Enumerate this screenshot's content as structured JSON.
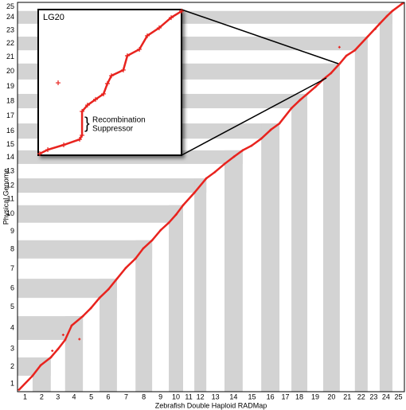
{
  "chart_data": [
    {
      "type": "scatter",
      "xlabel": "Zebrafish Double Haploid RADMap",
      "ylabel": "Physical Genome",
      "categories": [
        "1",
        "2",
        "3",
        "4",
        "5",
        "6",
        "7",
        "8",
        "9",
        "10",
        "11",
        "12",
        "13",
        "14",
        "15",
        "16",
        "17",
        "18",
        "19",
        "20",
        "21",
        "22",
        "23",
        "24",
        "25"
      ],
      "x_bounds": [
        0,
        3.9,
        8.6,
        12.3,
        16.9,
        21.2,
        25.7,
        30.5,
        34.8,
        39.1,
        42.8,
        45.7,
        48.8,
        53.5,
        58.2,
        63.0,
        67.7,
        70.8,
        74.9,
        79.0,
        83.3,
        87.2,
        90.5,
        93.6,
        96.9,
        100
      ],
      "y_bounds": [
        0,
        4.1,
        8.8,
        13.3,
        19.4,
        24.1,
        29.0,
        34.2,
        38.9,
        43.4,
        47.9,
        51.1,
        54.8,
        58.5,
        62.0,
        65.0,
        68.9,
        72.8,
        76.5,
        80.2,
        84.3,
        87.7,
        91.2,
        94.5,
        97.8,
        100
      ],
      "xlim": [
        0,
        100
      ],
      "ylim": [
        0,
        100
      ],
      "band_color": "#d3d3d3",
      "color": "#e8231e",
      "x": [
        0.4,
        3.9,
        6,
        8.6,
        10.5,
        12.3,
        14,
        16.9,
        19,
        21.2,
        23.5,
        25.7,
        28,
        30.5,
        32.5,
        34.8,
        37,
        39.1,
        41,
        42.8,
        45.7,
        48.8,
        51,
        53.5,
        56,
        58.2,
        60.5,
        63.0,
        65.5,
        67.7,
        70.8,
        73,
        74.9,
        77,
        79.0,
        81,
        83.3,
        85,
        87.2,
        90.5,
        93.6,
        95.5,
        96.9,
        99.6
      ],
      "y": [
        0.5,
        4.1,
        6.8,
        8.8,
        11,
        13.3,
        17,
        19.4,
        21.5,
        24.1,
        26.3,
        29.0,
        31.8,
        34.2,
        36.8,
        38.9,
        41.5,
        43.4,
        45.5,
        47.9,
        51.1,
        54.8,
        56.4,
        58.5,
        60.4,
        62.0,
        63.2,
        65.0,
        67.3,
        68.9,
        72.8,
        74.9,
        76.5,
        78.3,
        80.2,
        81.8,
        84.3,
        86.3,
        87.7,
        91.2,
        94.5,
        96.5,
        97.8,
        99.8
      ],
      "outliers_x": [
        16,
        11.8,
        83.2,
        92.5,
        9
      ],
      "outliers_y": [
        13.5,
        14.6,
        88.5,
        93.2,
        10.5
      ]
    },
    {
      "type": "scatter",
      "title": "LG20",
      "annotation": [
        "Recombination",
        "Suppressor"
      ],
      "xlim": [
        0,
        100
      ],
      "ylim": [
        0,
        100
      ],
      "color": "#e8231e",
      "x": [
        1.1,
        6.7,
        17.8,
        28.9,
        30.6,
        30.6,
        34.4,
        40.0,
        45.6,
        48.3,
        51.1,
        59.4,
        62.2,
        70.6,
        76.1,
        84.4,
        92.8,
        100
      ],
      "y": [
        1.1,
        3.8,
        7.1,
        10.9,
        13.7,
        30.1,
        34.4,
        38.3,
        42.1,
        49.2,
        54.6,
        58.5,
        68.3,
        72.7,
        82.0,
        87.4,
        94.5,
        98.9
      ],
      "outliers_x": [
        13.9
      ],
      "outliers_y": [
        49.7
      ]
    }
  ]
}
